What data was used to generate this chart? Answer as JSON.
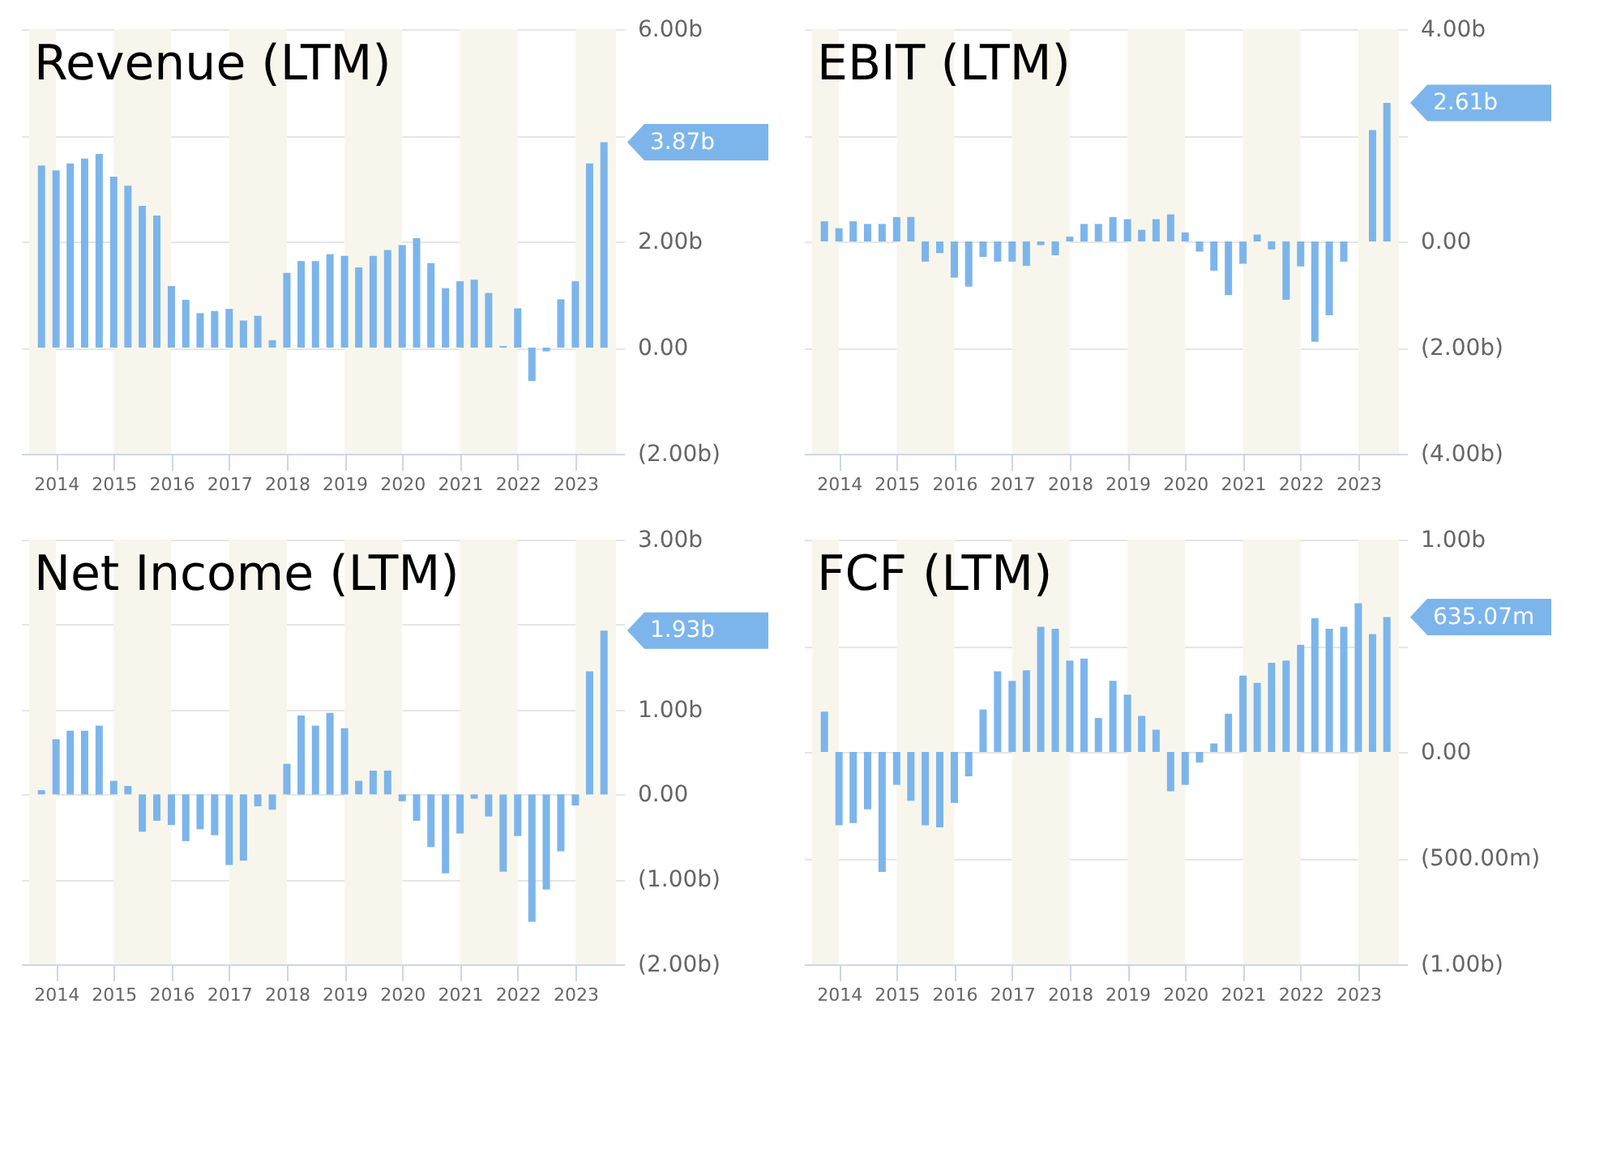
{
  "chart_data": [
    {
      "type": "bar",
      "title": "Revenue (LTM)",
      "color": "#7cb5ec",
      "grid": "y",
      "x": [
        "2013-10",
        "2014-01",
        "2014-04",
        "2014-07",
        "2014-10",
        "2015-01",
        "2015-04",
        "2015-07",
        "2015-10",
        "2016-01",
        "2016-04",
        "2016-07",
        "2016-10",
        "2017-01",
        "2017-04",
        "2017-07",
        "2017-10",
        "2018-01",
        "2018-04",
        "2018-07",
        "2018-10",
        "2019-01",
        "2019-04",
        "2019-07",
        "2019-10",
        "2020-01",
        "2020-04",
        "2020-07",
        "2020-10",
        "2021-01",
        "2021-04",
        "2021-07",
        "2021-10",
        "2022-01",
        "2022-04",
        "2022-07",
        "2022-10",
        "2023-01",
        "2023-04",
        "2023-07"
      ],
      "values": [
        3.43,
        3.34,
        3.47,
        3.56,
        3.65,
        3.22,
        3.05,
        2.67,
        2.49,
        1.16,
        0.9,
        0.65,
        0.69,
        0.73,
        0.51,
        0.6,
        0.14,
        1.41,
        1.63,
        1.63,
        1.76,
        1.73,
        1.51,
        1.73,
        1.84,
        1.93,
        2.06,
        1.59,
        1.12,
        1.25,
        1.28,
        1.03,
        0.03,
        0.74,
        -0.63,
        -0.07,
        0.91,
        1.25,
        3.47,
        3.87
      ],
      "xlim": [
        "2013-07-15",
        "2023-09-15"
      ],
      "xticks": [
        "2014",
        "2015",
        "2016",
        "2017",
        "2018",
        "2019",
        "2020",
        "2021",
        "2022",
        "2023"
      ],
      "ylim": [
        -2,
        6
      ],
      "yticks": [
        {
          "value": 6,
          "label": "6.00b"
        },
        {
          "value": 4,
          "label": null
        },
        {
          "value": 2,
          "label": "2.00b"
        },
        {
          "value": 0,
          "label": "0.00"
        },
        {
          "value": -2,
          "label": "(2.00b)"
        }
      ],
      "bands": [
        {
          "axis": "x",
          "from": "2013-07-15",
          "to": "2014-01-01",
          "color": "#f8f6ec"
        },
        {
          "axis": "x",
          "from": "2015-01-01",
          "to": "2016-01-01",
          "color": "#f8f6ec"
        },
        {
          "axis": "x",
          "from": "2017-01-01",
          "to": "2018-01-01",
          "color": "#f8f6ec"
        },
        {
          "axis": "x",
          "from": "2019-01-01",
          "to": "2020-01-01",
          "color": "#f8f6ec"
        },
        {
          "axis": "x",
          "from": "2021-01-01",
          "to": "2022-01-01",
          "color": "#f8f6ec"
        },
        {
          "axis": "x",
          "from": "2023-01-01",
          "to": "2023-09-15",
          "color": "#f8f6ec"
        }
      ],
      "annotations": [
        {
          "text": "3.87b",
          "x": "2023-07",
          "y": 3.87
        }
      ]
    },
    {
      "type": "bar",
      "title": "EBIT (LTM)",
      "color": "#7cb5ec",
      "grid": "y",
      "x": [
        "2013-10",
        "2014-01",
        "2014-04",
        "2014-07",
        "2014-10",
        "2015-01",
        "2015-04",
        "2015-07",
        "2015-10",
        "2016-01",
        "2016-04",
        "2016-07",
        "2016-10",
        "2017-01",
        "2017-04",
        "2017-07",
        "2017-10",
        "2018-01",
        "2018-04",
        "2018-07",
        "2018-10",
        "2019-01",
        "2019-04",
        "2019-07",
        "2019-10",
        "2020-01",
        "2020-04",
        "2020-07",
        "2020-10",
        "2021-01",
        "2021-04",
        "2021-07",
        "2021-10",
        "2022-01",
        "2022-04",
        "2022-07",
        "2022-10",
        "2023-01",
        "2023-04",
        "2023-07"
      ],
      "values": [
        0.38,
        0.25,
        0.38,
        0.33,
        0.33,
        0.46,
        0.46,
        -0.38,
        -0.22,
        -0.68,
        -0.85,
        -0.29,
        -0.38,
        -0.38,
        -0.46,
        -0.07,
        -0.26,
        0.09,
        0.33,
        0.33,
        0.46,
        0.42,
        0.22,
        0.42,
        0.51,
        0.17,
        -0.19,
        -0.55,
        -1.01,
        -0.42,
        0.13,
        -0.15,
        -1.1,
        -0.47,
        -1.89,
        -1.39,
        -0.38,
        0,
        2.1,
        2.61
      ],
      "xlim": [
        "2013-07-15",
        "2023-09-15"
      ],
      "xticks": [
        "2014",
        "2015",
        "2016",
        "2017",
        "2018",
        "2019",
        "2020",
        "2021",
        "2022",
        "2023"
      ],
      "ylim": [
        -4,
        4
      ],
      "yticks": [
        {
          "value": 4,
          "label": "4.00b"
        },
        {
          "value": 2,
          "label": null
        },
        {
          "value": 0,
          "label": "0.00"
        },
        {
          "value": -2,
          "label": "(2.00b)"
        },
        {
          "value": -4,
          "label": "(4.00b)"
        }
      ],
      "bands": [
        {
          "axis": "x",
          "from": "2013-07-15",
          "to": "2014-01-01",
          "color": "#f8f6ec"
        },
        {
          "axis": "x",
          "from": "2015-01-01",
          "to": "2016-01-01",
          "color": "#f8f6ec"
        },
        {
          "axis": "x",
          "from": "2017-01-01",
          "to": "2018-01-01",
          "color": "#f8f6ec"
        },
        {
          "axis": "x",
          "from": "2019-01-01",
          "to": "2020-01-01",
          "color": "#f8f6ec"
        },
        {
          "axis": "x",
          "from": "2021-01-01",
          "to": "2022-01-01",
          "color": "#f8f6ec"
        },
        {
          "axis": "x",
          "from": "2023-01-01",
          "to": "2023-09-15",
          "color": "#f8f6ec"
        }
      ],
      "annotations": [
        {
          "text": "2.61b",
          "x": "2023-07",
          "y": 2.61
        }
      ]
    },
    {
      "type": "bar",
      "title": "Net Income (LTM)",
      "color": "#7cb5ec",
      "grid": "y",
      "x": [
        "2013-10",
        "2014-01",
        "2014-04",
        "2014-07",
        "2014-10",
        "2015-01",
        "2015-04",
        "2015-07",
        "2015-10",
        "2016-01",
        "2016-04",
        "2016-07",
        "2016-10",
        "2017-01",
        "2017-04",
        "2017-07",
        "2017-10",
        "2018-01",
        "2018-04",
        "2018-07",
        "2018-10",
        "2019-01",
        "2019-04",
        "2019-07",
        "2019-10",
        "2020-01",
        "2020-04",
        "2020-07",
        "2020-10",
        "2021-01",
        "2021-04",
        "2021-07",
        "2021-10",
        "2022-01",
        "2022-04",
        "2022-07",
        "2022-10",
        "2023-01",
        "2023-04",
        "2023-07"
      ],
      "values": [
        0.05,
        0.65,
        0.75,
        0.75,
        0.81,
        0.16,
        0.1,
        -0.44,
        -0.31,
        -0.36,
        -0.55,
        -0.41,
        -0.48,
        -0.83,
        -0.78,
        -0.14,
        -0.18,
        0.36,
        0.93,
        0.81,
        0.96,
        0.78,
        0.16,
        0.28,
        0.28,
        -0.08,
        -0.31,
        -0.62,
        -0.93,
        -0.46,
        -0.05,
        -0.26,
        -0.91,
        -0.49,
        -1.5,
        -1.12,
        -0.67,
        -0.13,
        1.45,
        1.93
      ],
      "xlim": [
        "2013-07-15",
        "2023-09-15"
      ],
      "xticks": [
        "2014",
        "2015",
        "2016",
        "2017",
        "2018",
        "2019",
        "2020",
        "2021",
        "2022",
        "2023"
      ],
      "ylim": [
        -2,
        3
      ],
      "yticks": [
        {
          "value": 3,
          "label": "3.00b"
        },
        {
          "value": 2,
          "label": null
        },
        {
          "value": 1,
          "label": "1.00b"
        },
        {
          "value": 0,
          "label": "0.00"
        },
        {
          "value": -1,
          "label": "(1.00b)"
        },
        {
          "value": -2,
          "label": "(2.00b)"
        }
      ],
      "bands": [
        {
          "axis": "x",
          "from": "2013-07-15",
          "to": "2014-01-01",
          "color": "#f8f6ec"
        },
        {
          "axis": "x",
          "from": "2015-01-01",
          "to": "2016-01-01",
          "color": "#f8f6ec"
        },
        {
          "axis": "x",
          "from": "2017-01-01",
          "to": "2018-01-01",
          "color": "#f8f6ec"
        },
        {
          "axis": "x",
          "from": "2019-01-01",
          "to": "2020-01-01",
          "color": "#f8f6ec"
        },
        {
          "axis": "x",
          "from": "2021-01-01",
          "to": "2022-01-01",
          "color": "#f8f6ec"
        },
        {
          "axis": "x",
          "from": "2023-01-01",
          "to": "2023-09-15",
          "color": "#f8f6ec"
        }
      ],
      "annotations": [
        {
          "text": "1.93b",
          "x": "2023-07",
          "y": 1.93
        }
      ]
    },
    {
      "type": "bar",
      "title": "FCF (LTM)",
      "color": "#7cb5ec",
      "grid": "y",
      "x": [
        "2013-10",
        "2014-01",
        "2014-04",
        "2014-07",
        "2014-10",
        "2015-01",
        "2015-04",
        "2015-07",
        "2015-10",
        "2016-01",
        "2016-04",
        "2016-07",
        "2016-10",
        "2017-01",
        "2017-04",
        "2017-07",
        "2017-10",
        "2018-01",
        "2018-04",
        "2018-07",
        "2018-10",
        "2019-01",
        "2019-04",
        "2019-07",
        "2019-10",
        "2020-01",
        "2020-04",
        "2020-07",
        "2020-10",
        "2021-01",
        "2021-04",
        "2021-07",
        "2021-10",
        "2022-01",
        "2022-04",
        "2022-07",
        "2022-10",
        "2023-01",
        "2023-04",
        "2023-07"
      ],
      "values": [
        190000000,
        -345000000,
        -335000000,
        -270000000,
        -565000000,
        -155000000,
        -230000000,
        -345000000,
        -355000000,
        -240000000,
        -115000000,
        200000000,
        380000000,
        335000000,
        385000000,
        590000000,
        580000000,
        430000000,
        440000000,
        160000000,
        335000000,
        270000000,
        170000000,
        105000000,
        -185000000,
        -155000000,
        -50000000,
        40000000,
        180000000,
        360000000,
        325000000,
        420000000,
        430000000,
        505000000,
        630000000,
        580000000,
        590000000,
        700000000,
        555000000,
        635070000
      ],
      "xlim": [
        "2013-07-15",
        "2023-09-15"
      ],
      "xticks": [
        "2014",
        "2015",
        "2016",
        "2017",
        "2018",
        "2019",
        "2020",
        "2021",
        "2022",
        "2023"
      ],
      "ylim": [
        -1000000000,
        1000000000
      ],
      "yticks": [
        {
          "value": 1000000000,
          "label": "1.00b"
        },
        {
          "value": 500000000,
          "label": null
        },
        {
          "value": 0,
          "label": "0.00"
        },
        {
          "value": -500000000,
          "label": "(500.00m)"
        },
        {
          "value": -1000000000,
          "label": "(1.00b)"
        }
      ],
      "bands": [
        {
          "axis": "x",
          "from": "2013-07-15",
          "to": "2014-01-01",
          "color": "#f8f6ec"
        },
        {
          "axis": "x",
          "from": "2015-01-01",
          "to": "2016-01-01",
          "color": "#f8f6ec"
        },
        {
          "axis": "x",
          "from": "2017-01-01",
          "to": "2018-01-01",
          "color": "#f8f6ec"
        },
        {
          "axis": "x",
          "from": "2019-01-01",
          "to": "2020-01-01",
          "color": "#f8f6ec"
        },
        {
          "axis": "x",
          "from": "2021-01-01",
          "to": "2022-01-01",
          "color": "#f8f6ec"
        },
        {
          "axis": "x",
          "from": "2023-01-01",
          "to": "2023-09-15",
          "color": "#f8f6ec"
        }
      ],
      "annotations": [
        {
          "text": "635.07m",
          "x": "2023-07",
          "y": 635070000
        }
      ]
    }
  ]
}
